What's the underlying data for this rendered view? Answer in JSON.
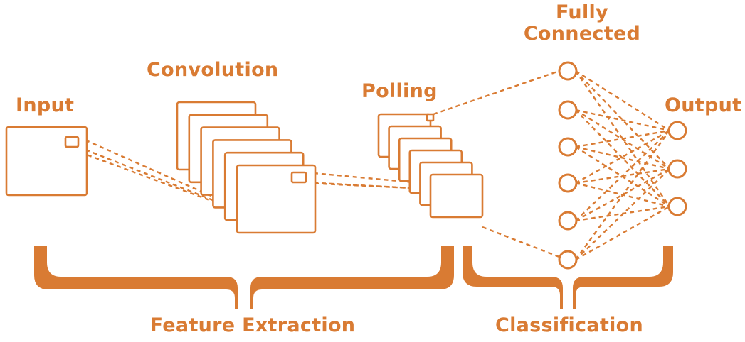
{
  "colors": {
    "accent": "#D97B33",
    "background": "#FFFFFF"
  },
  "labels": {
    "input": "Input",
    "convolution": "Convolution",
    "polling": "Polling",
    "fully_connected_line1": "Fully",
    "fully_connected_line2": "Connected",
    "output": "Output",
    "feature_extraction": "Feature Extraction",
    "classification": "Classification"
  },
  "network": {
    "convolution_feature_maps": 6,
    "pooling_feature_maps": 6,
    "fully_connected_nodes": 6,
    "output_nodes": 3
  }
}
